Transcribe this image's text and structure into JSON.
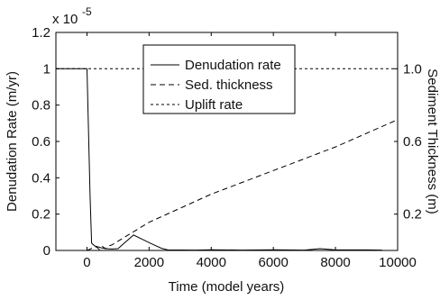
{
  "chart_data": {
    "type": "line",
    "xlabel": "Time (model years)",
    "ylabel_left": "Denudation Rate (m/yr)",
    "ylabel_right": "Sediment Thickness (m)",
    "left_exponent_base": "x 10",
    "left_exponent_power": "-5",
    "xlim": [
      -1000,
      10000
    ],
    "ylim_left": [
      0,
      1.2
    ],
    "ylim_right": [
      0,
      1.2
    ],
    "x_ticks": [
      "0",
      "2000",
      "4000",
      "6000",
      "8000",
      "10000"
    ],
    "y_left_ticks": [
      "0",
      "0.2",
      "0.4",
      "0.6",
      "0.8",
      "1",
      "1.2"
    ],
    "y_right_ticks": [
      "0.2",
      "0.6",
      "1.0"
    ],
    "legend_position": "top-center",
    "grid": false,
    "series": [
      {
        "name": "Denudation rate",
        "style": "solid",
        "axis": "left",
        "x": [
          -1000,
          0,
          100,
          150,
          250,
          350,
          450,
          600,
          800,
          1000,
          1200,
          1500,
          1800,
          2100,
          2400,
          2600,
          3500,
          4000,
          5000,
          6000,
          7000,
          7500,
          8000,
          9000,
          9500
        ],
        "y": [
          1.0,
          1.0,
          0.3,
          0.04,
          0.025,
          0.02,
          0.015,
          0.01,
          0.008,
          0.01,
          0.04,
          0.085,
          0.06,
          0.035,
          0.012,
          0.003,
          0.002,
          0.004,
          0.002,
          0.004,
          0.002,
          0.01,
          0.003,
          0.003,
          0.002
        ]
      },
      {
        "name": "Sed. thickness",
        "style": "dashed",
        "axis": "right",
        "x": [
          0,
          200,
          300,
          400,
          500,
          600,
          700,
          800,
          2000,
          4000,
          6000,
          8000,
          10000
        ],
        "y": [
          0.0,
          0.015,
          0.02,
          0.005,
          0.022,
          0.01,
          0.025,
          0.03,
          0.155,
          0.31,
          0.44,
          0.57,
          0.72
        ]
      },
      {
        "name": "Uplift rate",
        "style": "dotted",
        "axis": "left",
        "x": [
          -1000,
          10000
        ],
        "y": [
          1.0,
          1.0
        ]
      }
    ]
  }
}
